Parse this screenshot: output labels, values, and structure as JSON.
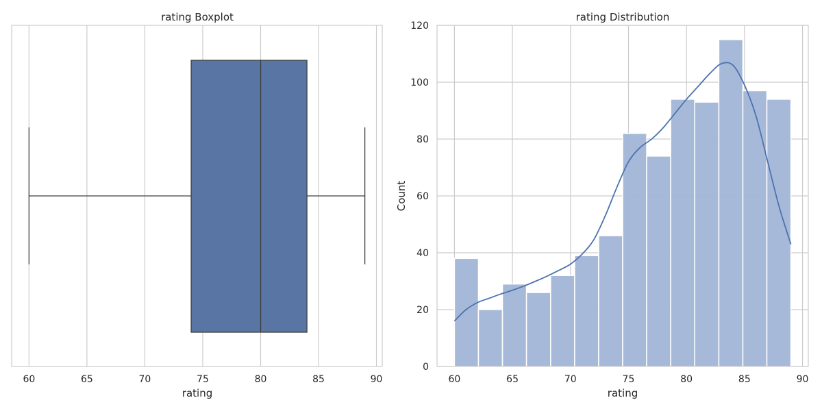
{
  "chart_data": [
    {
      "type": "box",
      "title": "rating Boxplot",
      "xlabel": "rating",
      "ylabel": "",
      "xlim": [
        58.5,
        90.5
      ],
      "xticks": [
        60,
        65,
        70,
        75,
        80,
        85,
        90
      ],
      "grid": true,
      "box": {
        "whisker_low": 60,
        "q1": 74,
        "median": 80,
        "q3": 84,
        "whisker_high": 89
      },
      "colors": {
        "box": "#5875a4",
        "line": "#3f3f3f"
      }
    },
    {
      "type": "bar",
      "title": "rating Distribution",
      "xlabel": "rating",
      "ylabel": "Count",
      "xlim": [
        58.5,
        90.5
      ],
      "ylim": [
        0,
        120
      ],
      "xticks": [
        60,
        65,
        70,
        75,
        80,
        85,
        90
      ],
      "yticks": [
        0,
        20,
        40,
        60,
        80,
        100,
        120
      ],
      "grid": true,
      "bin_edges": [
        60,
        62.07,
        64.14,
        66.21,
        68.29,
        70.36,
        72.43,
        74.5,
        76.57,
        78.64,
        80.71,
        82.79,
        84.86,
        86.93,
        89
      ],
      "values": [
        38,
        20,
        29,
        26,
        32,
        39,
        46,
        82,
        74,
        94,
        93,
        115,
        97,
        94
      ],
      "kde": {
        "x": [
          60,
          61,
          62,
          63,
          64,
          65,
          66,
          67,
          68,
          69,
          70,
          71,
          72,
          73,
          74,
          75,
          76,
          77,
          78,
          79,
          80,
          81,
          82,
          83,
          84,
          85,
          86,
          87,
          88,
          89
        ],
        "y": [
          16,
          20,
          22.5,
          24,
          25.5,
          26.8,
          28.3,
          30,
          31.8,
          33.8,
          36,
          39.5,
          44.5,
          53,
          63,
          72,
          77,
          80,
          84,
          89,
          94,
          98.5,
          103,
          106.5,
          106,
          99,
          88,
          72,
          56,
          43
        ]
      },
      "colors": {
        "bar": "#a2b5d6",
        "bar_edge": "#ffffff",
        "kde": "#4c72b0"
      }
    }
  ]
}
